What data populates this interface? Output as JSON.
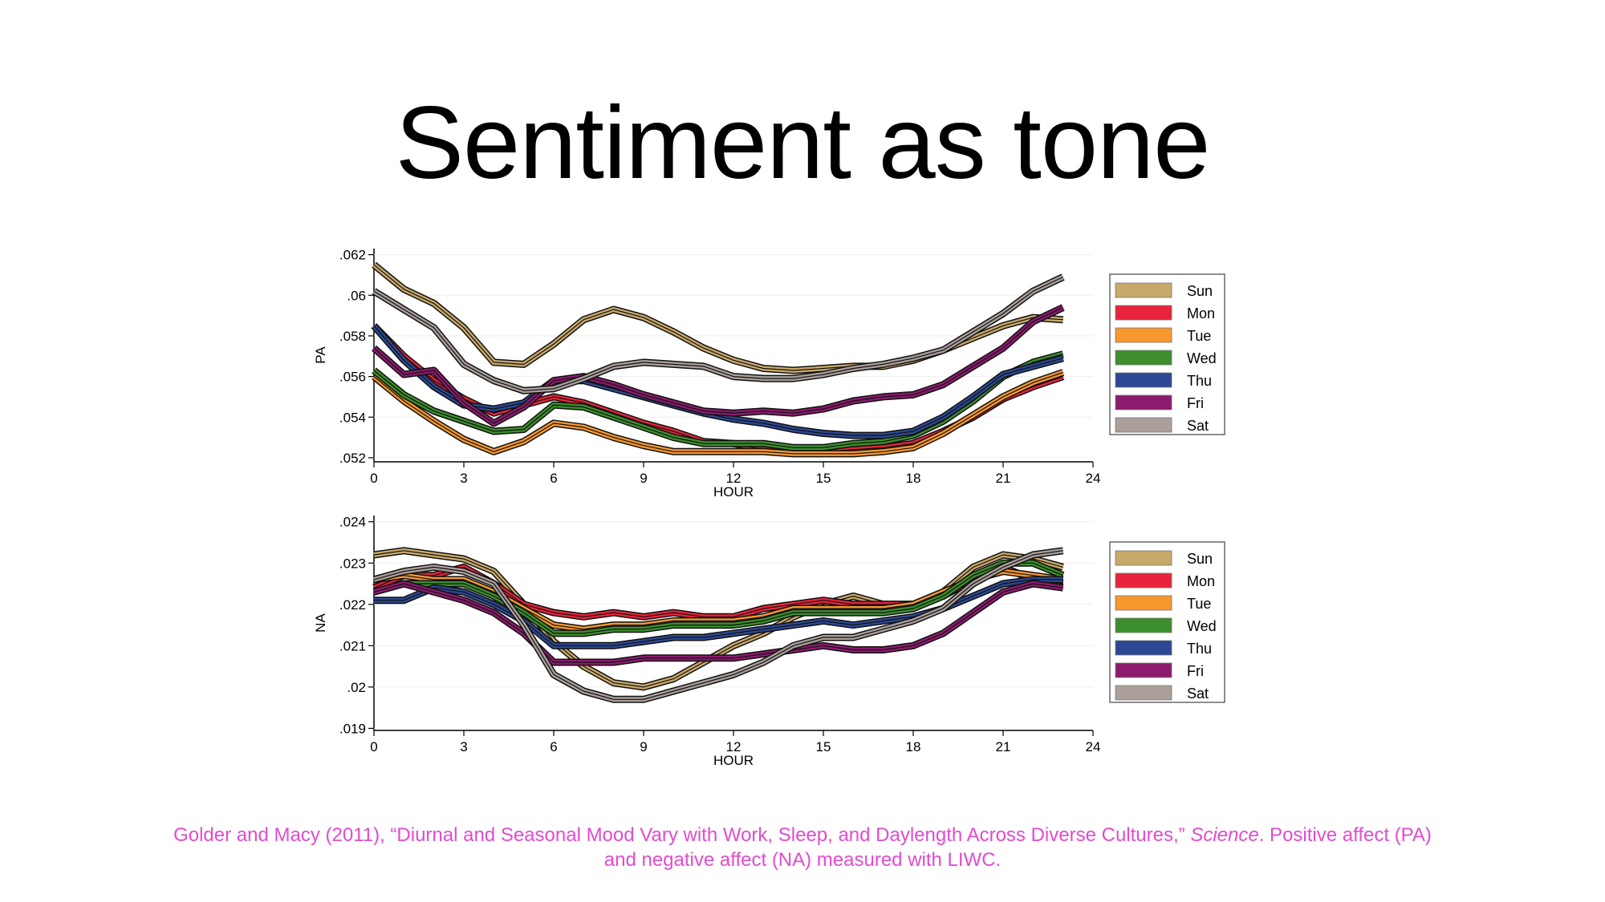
{
  "slide": {
    "title": "Sentiment as tone",
    "caption": {
      "part1": "Golder and Macy (2011), “Diurnal and Seasonal Mood Vary with Work, Sleep, and Daylength Across Diverse Cultures,” ",
      "journal": "Science",
      "part2": ".  Positive affect (PA) and negative affect (NA) measured with LIWC.",
      "color": "#e24bd0"
    }
  },
  "chart_data": [
    {
      "type": "line",
      "ylabel": "PA",
      "xlabel": "HOUR",
      "xlim": [
        0,
        24
      ],
      "ylim": [
        0.0518,
        0.0623
      ],
      "xticks": [
        0,
        3,
        6,
        9,
        12,
        15,
        18,
        21,
        24
      ],
      "xtick_labels": [
        "0",
        "3",
        "6",
        "9",
        "12",
        "15",
        "18",
        "21",
        "24"
      ],
      "yticks": [
        0.052,
        0.054,
        0.056,
        0.058,
        0.06,
        0.062
      ],
      "ytick_labels": [
        ".052",
        ".054",
        ".056",
        ".058",
        ".06",
        ".062"
      ],
      "legend_position": "right",
      "x": [
        0,
        1,
        2,
        3,
        4,
        5,
        6,
        7,
        8,
        9,
        10,
        11,
        12,
        13,
        14,
        15,
        16,
        17,
        18,
        19,
        20,
        21,
        22,
        23
      ],
      "series": [
        {
          "name": "Sun",
          "color": "#c9a96a",
          "values": [
            0.0615,
            0.0603,
            0.0596,
            0.0584,
            0.0567,
            0.0566,
            0.0576,
            0.0588,
            0.0593,
            0.0589,
            0.0582,
            0.0574,
            0.0568,
            0.0564,
            0.0563,
            0.0564,
            0.0565,
            0.0565,
            0.0568,
            0.0573,
            0.0579,
            0.0585,
            0.0589,
            0.0588
          ]
        },
        {
          "name": "Mon",
          "color": "#e8233b",
          "values": [
            0.0585,
            0.057,
            0.0558,
            0.0549,
            0.0542,
            0.0546,
            0.055,
            0.0547,
            0.0542,
            0.0537,
            0.0533,
            0.0528,
            0.0527,
            0.0524,
            0.0523,
            0.0523,
            0.0524,
            0.0525,
            0.0527,
            0.0533,
            0.054,
            0.0549,
            0.0555,
            0.056
          ]
        },
        {
          "name": "Tue",
          "color": "#f7982e",
          "values": [
            0.056,
            0.0548,
            0.0538,
            0.0529,
            0.0523,
            0.0528,
            0.0537,
            0.0535,
            0.053,
            0.0526,
            0.0523,
            0.0523,
            0.0523,
            0.0523,
            0.0522,
            0.0522,
            0.0522,
            0.0523,
            0.0525,
            0.0532,
            0.0541,
            0.055,
            0.0557,
            0.0562
          ]
        },
        {
          "name": "Wed",
          "color": "#3c8f2c",
          "values": [
            0.0563,
            0.0551,
            0.0543,
            0.0538,
            0.0533,
            0.0534,
            0.0546,
            0.0545,
            0.054,
            0.0535,
            0.053,
            0.0527,
            0.0527,
            0.0527,
            0.0525,
            0.0525,
            0.0527,
            0.0528,
            0.0531,
            0.0538,
            0.0548,
            0.056,
            0.0567,
            0.0571
          ]
        },
        {
          "name": "Thu",
          "color": "#2c4892",
          "values": [
            0.0585,
            0.0568,
            0.0555,
            0.0546,
            0.0544,
            0.0547,
            0.0558,
            0.0558,
            0.0554,
            0.055,
            0.0546,
            0.0542,
            0.0539,
            0.0537,
            0.0534,
            0.0532,
            0.0531,
            0.0531,
            0.0533,
            0.054,
            0.055,
            0.0561,
            0.0565,
            0.0569
          ]
        },
        {
          "name": "Fri",
          "color": "#8c1a6e",
          "values": [
            0.0574,
            0.0561,
            0.0563,
            0.0547,
            0.0537,
            0.0545,
            0.0558,
            0.056,
            0.0556,
            0.0551,
            0.0547,
            0.0543,
            0.0542,
            0.0543,
            0.0542,
            0.0544,
            0.0548,
            0.055,
            0.0551,
            0.0556,
            0.0565,
            0.0574,
            0.0587,
            0.0594
          ]
        },
        {
          "name": "Sat",
          "color": "#aa9f9b",
          "values": [
            0.0602,
            0.0593,
            0.0584,
            0.0566,
            0.0558,
            0.0553,
            0.0554,
            0.0559,
            0.0565,
            0.0567,
            0.0566,
            0.0565,
            0.056,
            0.0559,
            0.0559,
            0.0561,
            0.0564,
            0.0566,
            0.0569,
            0.0573,
            0.0582,
            0.0591,
            0.0602,
            0.0609
          ]
        }
      ]
    },
    {
      "type": "line",
      "ylabel": "NA",
      "xlabel": "HOUR",
      "xlim": [
        0,
        24
      ],
      "ylim": [
        0.01895,
        0.02415
      ],
      "xticks": [
        0,
        3,
        6,
        9,
        12,
        15,
        18,
        21,
        24
      ],
      "xtick_labels": [
        "0",
        "3",
        "6",
        "9",
        "12",
        "15",
        "18",
        "21",
        "24"
      ],
      "yticks": [
        0.019,
        0.02,
        0.021,
        0.022,
        0.023,
        0.024
      ],
      "ytick_labels": [
        ".019",
        ".02",
        ".021",
        ".022",
        ".023",
        ".024"
      ],
      "legend_position": "right",
      "x": [
        0,
        1,
        2,
        3,
        4,
        5,
        6,
        7,
        8,
        9,
        10,
        11,
        12,
        13,
        14,
        15,
        16,
        17,
        18,
        19,
        20,
        21,
        22,
        23
      ],
      "series": [
        {
          "name": "Sun",
          "color": "#c9a96a",
          "values": [
            0.0232,
            0.0233,
            0.0232,
            0.0231,
            0.0228,
            0.022,
            0.0211,
            0.0205,
            0.0201,
            0.02,
            0.0202,
            0.0206,
            0.021,
            0.0213,
            0.0217,
            0.022,
            0.0222,
            0.022,
            0.022,
            0.0223,
            0.0229,
            0.0232,
            0.0231,
            0.0229
          ]
        },
        {
          "name": "Mon",
          "color": "#e8233b",
          "values": [
            0.0224,
            0.0227,
            0.0227,
            0.0229,
            0.0225,
            0.022,
            0.0218,
            0.0217,
            0.0218,
            0.0217,
            0.0218,
            0.0217,
            0.0217,
            0.0219,
            0.022,
            0.0221,
            0.022,
            0.022,
            0.022,
            0.0222,
            0.0226,
            0.0229,
            0.0226,
            0.0225
          ]
        },
        {
          "name": "Tue",
          "color": "#f7982e",
          "values": [
            0.0226,
            0.0227,
            0.0226,
            0.0226,
            0.0223,
            0.0219,
            0.0215,
            0.0214,
            0.0215,
            0.0215,
            0.0216,
            0.0216,
            0.0216,
            0.0217,
            0.0219,
            0.0219,
            0.0219,
            0.0219,
            0.022,
            0.0223,
            0.0226,
            0.0228,
            0.0227,
            0.0226
          ]
        },
        {
          "name": "Wed",
          "color": "#3c8f2c",
          "values": [
            0.0223,
            0.0225,
            0.0225,
            0.0225,
            0.0222,
            0.0218,
            0.0213,
            0.0213,
            0.0214,
            0.0214,
            0.0215,
            0.0215,
            0.0215,
            0.0216,
            0.0218,
            0.0218,
            0.0218,
            0.0218,
            0.0219,
            0.0222,
            0.0227,
            0.023,
            0.023,
            0.0227
          ]
        },
        {
          "name": "Thu",
          "color": "#2c4892",
          "values": [
            0.0221,
            0.0221,
            0.0224,
            0.0223,
            0.022,
            0.0216,
            0.021,
            0.021,
            0.021,
            0.0211,
            0.0212,
            0.0212,
            0.0213,
            0.0214,
            0.0215,
            0.0216,
            0.0215,
            0.0216,
            0.0217,
            0.0219,
            0.0222,
            0.0225,
            0.0226,
            0.0226
          ]
        },
        {
          "name": "Fri",
          "color": "#8c1a6e",
          "values": [
            0.0223,
            0.0225,
            0.0223,
            0.0221,
            0.0218,
            0.0213,
            0.0206,
            0.0206,
            0.0206,
            0.0207,
            0.0207,
            0.0207,
            0.0207,
            0.0208,
            0.0209,
            0.021,
            0.0209,
            0.0209,
            0.021,
            0.0213,
            0.0218,
            0.0223,
            0.0225,
            0.0224
          ]
        },
        {
          "name": "Sat",
          "color": "#aa9f9b",
          "values": [
            0.0226,
            0.0228,
            0.0229,
            0.0228,
            0.0225,
            0.0215,
            0.0203,
            0.0199,
            0.0197,
            0.0197,
            0.0199,
            0.0201,
            0.0203,
            0.0206,
            0.021,
            0.0212,
            0.0212,
            0.0214,
            0.0216,
            0.0219,
            0.0225,
            0.0229,
            0.0232,
            0.0233
          ]
        }
      ]
    }
  ]
}
